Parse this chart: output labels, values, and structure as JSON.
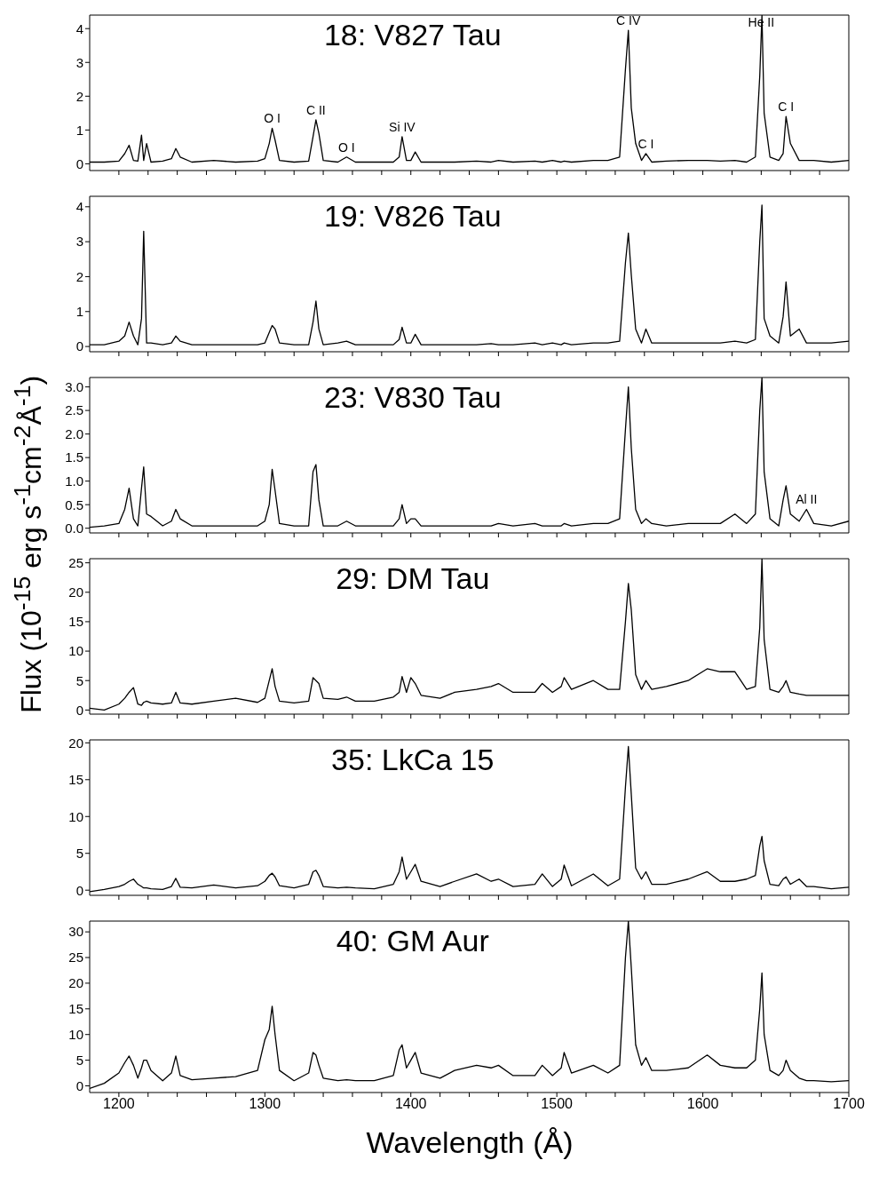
{
  "chart_data": [
    {
      "type": "line",
      "title": "18: V827 Tau",
      "ylabel": "Flux (10$^{-15}$ erg s$^{-1}$cm$^{-2}$Å$^{-1}$)",
      "color": "#000000",
      "tick_labels": "y",
      "xlim": [
        1180,
        1700
      ],
      "xticks": [
        {
          "value": 1200,
          "label": null
        },
        {
          "value": 1220,
          "label": null
        },
        {
          "value": 1240,
          "label": null
        },
        {
          "value": 1260,
          "label": null
        },
        {
          "value": 1280,
          "label": null
        },
        {
          "value": 1300,
          "label": null
        },
        {
          "value": 1320,
          "label": null
        },
        {
          "value": 1340,
          "label": null
        },
        {
          "value": 1360,
          "label": null
        },
        {
          "value": 1380,
          "label": null
        },
        {
          "value": 1400,
          "label": null
        },
        {
          "value": 1420,
          "label": null
        },
        {
          "value": 1440,
          "label": null
        },
        {
          "value": 1460,
          "label": null
        },
        {
          "value": 1480,
          "label": null
        },
        {
          "value": 1500,
          "label": null
        },
        {
          "value": 1520,
          "label": null
        },
        {
          "value": 1540,
          "label": null
        },
        {
          "value": 1560,
          "label": null
        },
        {
          "value": 1580,
          "label": null
        },
        {
          "value": 1600,
          "label": null
        },
        {
          "value": 1620,
          "label": null
        },
        {
          "value": 1640,
          "label": null
        },
        {
          "value": 1660,
          "label": null
        },
        {
          "value": 1680,
          "label": null
        }
      ],
      "ylim": [
        -0.2,
        4.4
      ],
      "yticks": [
        0,
        1,
        2,
        3,
        4
      ],
      "x": [
        1180,
        1190,
        1200,
        1204,
        1207,
        1210,
        1213,
        1215.5,
        1217,
        1219,
        1222,
        1230,
        1236,
        1239,
        1242,
        1250,
        1265,
        1280,
        1295,
        1300,
        1303,
        1305,
        1307,
        1310,
        1320,
        1330,
        1333,
        1335,
        1337,
        1340,
        1350,
        1356,
        1362,
        1375,
        1388,
        1392,
        1394,
        1397,
        1400,
        1403,
        1407,
        1420,
        1430,
        1445,
        1455,
        1460,
        1470,
        1485,
        1490,
        1497,
        1503,
        1505,
        1510,
        1525,
        1535,
        1543,
        1547,
        1549,
        1551,
        1554,
        1558,
        1561,
        1565,
        1575,
        1590,
        1603,
        1612,
        1622,
        1630,
        1636,
        1639,
        1640.5,
        1642,
        1646,
        1652,
        1655,
        1657,
        1660,
        1666,
        1671,
        1676,
        1688,
        1700
      ],
      "values": [
        0.05,
        0.05,
        0.08,
        0.3,
        0.55,
        0.1,
        0.08,
        0.85,
        0.1,
        0.6,
        0.05,
        0.08,
        0.15,
        0.45,
        0.2,
        0.05,
        0.1,
        0.05,
        0.08,
        0.15,
        0.6,
        1.05,
        0.7,
        0.1,
        0.05,
        0.08,
        0.8,
        1.3,
        0.9,
        0.1,
        0.05,
        0.2,
        0.05,
        0.05,
        0.05,
        0.2,
        0.8,
        0.1,
        0.1,
        0.35,
        0.05,
        0.05,
        0.05,
        0.08,
        0.05,
        0.1,
        0.05,
        0.08,
        0.05,
        0.1,
        0.05,
        0.08,
        0.05,
        0.1,
        0.1,
        0.2,
        2.8,
        3.95,
        1.65,
        0.6,
        0.1,
        0.3,
        0.05,
        0.08,
        0.1,
        0.1,
        0.08,
        0.1,
        0.05,
        0.2,
        2.6,
        4.4,
        1.5,
        0.2,
        0.1,
        0.3,
        1.4,
        0.6,
        0.1,
        0.1,
        0.1,
        0.05,
        0.1
      ],
      "annotations": [
        {
          "text": "O I",
          "x": 1305,
          "y": 1.05
        },
        {
          "text": "C II",
          "x": 1335,
          "y": 1.3
        },
        {
          "text": "O I",
          "x": 1356,
          "y": 0.2
        },
        {
          "text": "Si IV",
          "x": 1394,
          "y": 0.8
        },
        {
          "text": "C IV",
          "x": 1549,
          "y": 3.95
        },
        {
          "text": "C I",
          "x": 1561,
          "y": 0.3
        },
        {
          "text": "He II",
          "x": 1640,
          "y": 3.9
        },
        {
          "text": "C I",
          "x": 1657,
          "y": 1.4
        }
      ]
    },
    {
      "type": "line",
      "title": "19: V826 Tau",
      "color": "#000000",
      "tick_labels": "y",
      "xlim": [
        1180,
        1700
      ],
      "xticks": [
        {
          "value": 1200,
          "label": null
        },
        {
          "value": 1220,
          "label": null
        },
        {
          "value": 1240,
          "label": null
        },
        {
          "value": 1260,
          "label": null
        },
        {
          "value": 1280,
          "label": null
        },
        {
          "value": 1300,
          "label": null
        },
        {
          "value": 1320,
          "label": null
        },
        {
          "value": 1340,
          "label": null
        },
        {
          "value": 1360,
          "label": null
        },
        {
          "value": 1380,
          "label": null
        },
        {
          "value": 1400,
          "label": null
        },
        {
          "value": 1420,
          "label": null
        },
        {
          "value": 1440,
          "label": null
        },
        {
          "value": 1460,
          "label": null
        },
        {
          "value": 1480,
          "label": null
        },
        {
          "value": 1500,
          "label": null
        },
        {
          "value": 1520,
          "label": null
        },
        {
          "value": 1540,
          "label": null
        },
        {
          "value": 1560,
          "label": null
        },
        {
          "value": 1580,
          "label": null
        },
        {
          "value": 1600,
          "label": null
        },
        {
          "value": 1620,
          "label": null
        },
        {
          "value": 1640,
          "label": null
        },
        {
          "value": 1660,
          "label": null
        },
        {
          "value": 1680,
          "label": null
        }
      ],
      "ylim": [
        -0.15,
        4.3
      ],
      "yticks": [
        0,
        1,
        2,
        3,
        4
      ],
      "x": [
        1180,
        1190,
        1200,
        1204,
        1207,
        1210,
        1213,
        1215.5,
        1217,
        1219,
        1222,
        1230,
        1236,
        1239,
        1242,
        1250,
        1265,
        1280,
        1295,
        1300,
        1303,
        1305,
        1307,
        1310,
        1320,
        1330,
        1333,
        1335,
        1337,
        1340,
        1350,
        1356,
        1362,
        1375,
        1388,
        1392,
        1394,
        1397,
        1400,
        1403,
        1407,
        1420,
        1430,
        1445,
        1455,
        1460,
        1470,
        1485,
        1490,
        1497,
        1503,
        1505,
        1510,
        1525,
        1535,
        1543,
        1547,
        1549,
        1551,
        1554,
        1558,
        1561,
        1565,
        1575,
        1590,
        1603,
        1612,
        1622,
        1630,
        1636,
        1639,
        1640.5,
        1642,
        1646,
        1652,
        1655,
        1657,
        1660,
        1666,
        1671,
        1676,
        1688,
        1700
      ],
      "values": [
        0.05,
        0.05,
        0.15,
        0.3,
        0.7,
        0.3,
        0.05,
        0.8,
        3.3,
        0.1,
        0.1,
        0.05,
        0.1,
        0.3,
        0.15,
        0.05,
        0.05,
        0.05,
        0.05,
        0.1,
        0.4,
        0.6,
        0.5,
        0.1,
        0.05,
        0.05,
        0.7,
        1.3,
        0.5,
        0.05,
        0.1,
        0.15,
        0.05,
        0.05,
        0.05,
        0.2,
        0.55,
        0.1,
        0.1,
        0.35,
        0.05,
        0.05,
        0.05,
        0.05,
        0.08,
        0.05,
        0.05,
        0.1,
        0.05,
        0.1,
        0.05,
        0.1,
        0.05,
        0.1,
        0.1,
        0.15,
        2.4,
        3.25,
        2.05,
        0.5,
        0.1,
        0.5,
        0.1,
        0.1,
        0.1,
        0.1,
        0.1,
        0.15,
        0.1,
        0.2,
        3.0,
        4.05,
        0.8,
        0.3,
        0.1,
        0.85,
        1.85,
        0.3,
        0.5,
        0.1,
        0.1,
        0.1,
        0.15
      ]
    },
    {
      "type": "line",
      "title": "23: V830 Tau",
      "color": "#000000",
      "tick_labels": "y",
      "xlim": [
        1180,
        1700
      ],
      "xticks": [
        {
          "value": 1200,
          "label": null
        },
        {
          "value": 1220,
          "label": null
        },
        {
          "value": 1240,
          "label": null
        },
        {
          "value": 1260,
          "label": null
        },
        {
          "value": 1280,
          "label": null
        },
        {
          "value": 1300,
          "label": null
        },
        {
          "value": 1320,
          "label": null
        },
        {
          "value": 1340,
          "label": null
        },
        {
          "value": 1360,
          "label": null
        },
        {
          "value": 1380,
          "label": null
        },
        {
          "value": 1400,
          "label": null
        },
        {
          "value": 1420,
          "label": null
        },
        {
          "value": 1440,
          "label": null
        },
        {
          "value": 1460,
          "label": null
        },
        {
          "value": 1480,
          "label": null
        },
        {
          "value": 1500,
          "label": null
        },
        {
          "value": 1520,
          "label": null
        },
        {
          "value": 1540,
          "label": null
        },
        {
          "value": 1560,
          "label": null
        },
        {
          "value": 1580,
          "label": null
        },
        {
          "value": 1600,
          "label": null
        },
        {
          "value": 1620,
          "label": null
        },
        {
          "value": 1640,
          "label": null
        },
        {
          "value": 1660,
          "label": null
        },
        {
          "value": 1680,
          "label": null
        }
      ],
      "ylim": [
        -0.1,
        3.2
      ],
      "yticks": [
        {
          "value": 0,
          "label": "0.0"
        },
        {
          "value": 0.5,
          "label": "0.5"
        },
        {
          "value": 1,
          "label": "1.0"
        },
        {
          "value": 1.5,
          "label": "1.5"
        },
        {
          "value": 2,
          "label": "2.0"
        },
        {
          "value": 2.5,
          "label": "2.5"
        },
        {
          "value": 3,
          "label": "3.0"
        }
      ],
      "x": [
        1180,
        1190,
        1200,
        1204,
        1207,
        1210,
        1213,
        1215.5,
        1217,
        1219,
        1222,
        1230,
        1236,
        1239,
        1242,
        1250,
        1265,
        1280,
        1295,
        1300,
        1303,
        1305,
        1307,
        1310,
        1320,
        1330,
        1333,
        1335,
        1337,
        1340,
        1350,
        1356,
        1362,
        1375,
        1388,
        1392,
        1394,
        1397,
        1400,
        1403,
        1407,
        1420,
        1430,
        1445,
        1455,
        1460,
        1470,
        1485,
        1490,
        1497,
        1503,
        1505,
        1510,
        1525,
        1535,
        1543,
        1547,
        1549,
        1551,
        1554,
        1558,
        1561,
        1565,
        1575,
        1590,
        1603,
        1612,
        1622,
        1630,
        1636,
        1639,
        1640.5,
        1642,
        1646,
        1652,
        1655,
        1657,
        1660,
        1666,
        1671,
        1676,
        1688,
        1700
      ],
      "values": [
        0.02,
        0.05,
        0.1,
        0.4,
        0.85,
        0.2,
        0.05,
        0.85,
        1.3,
        0.3,
        0.25,
        0.05,
        0.15,
        0.4,
        0.2,
        0.05,
        0.05,
        0.05,
        0.05,
        0.15,
        0.5,
        1.25,
        0.8,
        0.1,
        0.05,
        0.05,
        1.2,
        1.35,
        0.6,
        0.05,
        0.05,
        0.15,
        0.05,
        0.05,
        0.05,
        0.2,
        0.5,
        0.1,
        0.2,
        0.2,
        0.05,
        0.05,
        0.05,
        0.05,
        0.05,
        0.1,
        0.05,
        0.1,
        0.05,
        0.05,
        0.05,
        0.1,
        0.05,
        0.1,
        0.1,
        0.2,
        2.1,
        3.0,
        1.7,
        0.4,
        0.1,
        0.2,
        0.1,
        0.05,
        0.1,
        0.1,
        0.1,
        0.3,
        0.1,
        0.3,
        2.5,
        3.2,
        1.2,
        0.2,
        0.05,
        0.6,
        0.9,
        0.3,
        0.15,
        0.4,
        0.1,
        0.05,
        0.15
      ],
      "annotations": [
        {
          "text": "Al II",
          "x": 1671,
          "y": 0.4
        }
      ]
    },
    {
      "type": "line",
      "title": "29: DM Tau",
      "color": "#000000",
      "tick_labels": "y",
      "xlim": [
        1180,
        1700
      ],
      "xticks": [
        {
          "value": 1200,
          "label": null
        },
        {
          "value": 1220,
          "label": null
        },
        {
          "value": 1240,
          "label": null
        },
        {
          "value": 1260,
          "label": null
        },
        {
          "value": 1280,
          "label": null
        },
        {
          "value": 1300,
          "label": null
        },
        {
          "value": 1320,
          "label": null
        },
        {
          "value": 1340,
          "label": null
        },
        {
          "value": 1360,
          "label": null
        },
        {
          "value": 1380,
          "label": null
        },
        {
          "value": 1400,
          "label": null
        },
        {
          "value": 1420,
          "label": null
        },
        {
          "value": 1440,
          "label": null
        },
        {
          "value": 1460,
          "label": null
        },
        {
          "value": 1480,
          "label": null
        },
        {
          "value": 1500,
          "label": null
        },
        {
          "value": 1520,
          "label": null
        },
        {
          "value": 1540,
          "label": null
        },
        {
          "value": 1560,
          "label": null
        },
        {
          "value": 1580,
          "label": null
        },
        {
          "value": 1600,
          "label": null
        },
        {
          "value": 1620,
          "label": null
        },
        {
          "value": 1640,
          "label": null
        },
        {
          "value": 1660,
          "label": null
        },
        {
          "value": 1680,
          "label": null
        }
      ],
      "ylim": [
        -0.7,
        25.7
      ],
      "yticks": [
        0,
        5,
        10,
        15,
        20,
        25
      ],
      "x": [
        1180,
        1190,
        1200,
        1204,
        1207,
        1210,
        1213,
        1215.5,
        1217,
        1219,
        1222,
        1230,
        1236,
        1239,
        1242,
        1250,
        1265,
        1280,
        1295,
        1300,
        1303,
        1305,
        1307,
        1310,
        1320,
        1330,
        1333,
        1335,
        1337,
        1340,
        1350,
        1356,
        1362,
        1375,
        1388,
        1392,
        1394,
        1397,
        1400,
        1403,
        1407,
        1420,
        1430,
        1445,
        1455,
        1460,
        1470,
        1485,
        1490,
        1497,
        1503,
        1505,
        1510,
        1525,
        1535,
        1543,
        1547,
        1549,
        1551,
        1554,
        1558,
        1561,
        1565,
        1575,
        1590,
        1603,
        1612,
        1622,
        1630,
        1636,
        1639,
        1640.5,
        1642,
        1646,
        1652,
        1655,
        1657,
        1660,
        1666,
        1671,
        1676,
        1688,
        1700
      ],
      "values": [
        0.3,
        0,
        1,
        2,
        3,
        3.8,
        1,
        0.8,
        1.3,
        1.5,
        1.2,
        1,
        1.2,
        3,
        1.2,
        1,
        1.5,
        2,
        1.3,
        2,
        5,
        7,
        4,
        1.5,
        1.2,
        1.5,
        5.5,
        5,
        4.5,
        2,
        1.8,
        2.2,
        1.5,
        1.5,
        2.2,
        3,
        5.7,
        3,
        5.5,
        4.5,
        2.5,
        2,
        3,
        3.5,
        4,
        4.5,
        3,
        3,
        4.5,
        3,
        4,
        5.5,
        3.5,
        5,
        3.5,
        3.5,
        15,
        21.5,
        17,
        6,
        3.5,
        5,
        3.5,
        4,
        5,
        7,
        6.5,
        6.5,
        3.5,
        4,
        14,
        25.7,
        12,
        3.5,
        3,
        4,
        5,
        3,
        2.7,
        2.5,
        2.5,
        2.5,
        2.5
      ]
    },
    {
      "type": "line",
      "title": "35: LkCa 15",
      "color": "#000000",
      "tick_labels": "y",
      "xlim": [
        1180,
        1700
      ],
      "xticks": [
        {
          "value": 1200,
          "label": null
        },
        {
          "value": 1220,
          "label": null
        },
        {
          "value": 1240,
          "label": null
        },
        {
          "value": 1260,
          "label": null
        },
        {
          "value": 1280,
          "label": null
        },
        {
          "value": 1300,
          "label": null
        },
        {
          "value": 1320,
          "label": null
        },
        {
          "value": 1340,
          "label": null
        },
        {
          "value": 1360,
          "label": null
        },
        {
          "value": 1380,
          "label": null
        },
        {
          "value": 1400,
          "label": null
        },
        {
          "value": 1420,
          "label": null
        },
        {
          "value": 1440,
          "label": null
        },
        {
          "value": 1460,
          "label": null
        },
        {
          "value": 1480,
          "label": null
        },
        {
          "value": 1500,
          "label": null
        },
        {
          "value": 1520,
          "label": null
        },
        {
          "value": 1540,
          "label": null
        },
        {
          "value": 1560,
          "label": null
        },
        {
          "value": 1580,
          "label": null
        },
        {
          "value": 1600,
          "label": null
        },
        {
          "value": 1620,
          "label": null
        },
        {
          "value": 1640,
          "label": null
        },
        {
          "value": 1660,
          "label": null
        },
        {
          "value": 1680,
          "label": null
        }
      ],
      "ylim": [
        -0.7,
        20.4
      ],
      "yticks": [
        0,
        5,
        10,
        15,
        20
      ],
      "x": [
        1180,
        1190,
        1200,
        1204,
        1207,
        1210,
        1213,
        1215.5,
        1217,
        1219,
        1222,
        1230,
        1236,
        1239,
        1242,
        1250,
        1265,
        1280,
        1295,
        1300,
        1303,
        1305,
        1307,
        1310,
        1320,
        1330,
        1333,
        1335,
        1337,
        1340,
        1350,
        1356,
        1362,
        1375,
        1388,
        1392,
        1394,
        1397,
        1400,
        1403,
        1407,
        1420,
        1430,
        1445,
        1455,
        1460,
        1470,
        1485,
        1490,
        1497,
        1503,
        1505,
        1510,
        1525,
        1535,
        1543,
        1547,
        1549,
        1551,
        1554,
        1558,
        1561,
        1565,
        1575,
        1590,
        1603,
        1612,
        1622,
        1630,
        1636,
        1639,
        1640.5,
        1642,
        1646,
        1652,
        1655,
        1657,
        1660,
        1666,
        1671,
        1676,
        1688,
        1700
      ],
      "values": [
        -0.2,
        0.1,
        0.5,
        0.8,
        1.2,
        1.5,
        0.8,
        0.5,
        0.3,
        0.3,
        0.2,
        0.1,
        0.5,
        1.6,
        0.4,
        0.3,
        0.7,
        0.3,
        0.6,
        1.2,
        2,
        2.3,
        1.8,
        0.6,
        0.3,
        0.8,
        2.5,
        2.7,
        2,
        0.5,
        0.3,
        0.4,
        0.3,
        0.2,
        0.8,
        2.5,
        4.5,
        1.5,
        2.5,
        3.5,
        1.2,
        0.5,
        1.2,
        2.2,
        1.2,
        1.5,
        0.5,
        0.8,
        2.2,
        0.5,
        1.5,
        3.4,
        0.6,
        2.2,
        0.6,
        1.5,
        14,
        19.5,
        13,
        3,
        1.5,
        2.5,
        0.8,
        0.8,
        1.5,
        2.5,
        1.2,
        1.2,
        1.5,
        2,
        6,
        7.3,
        4,
        0.8,
        0.6,
        1.5,
        1.8,
        0.8,
        1.5,
        0.5,
        0.5,
        0.2,
        0.4
      ]
    },
    {
      "type": "line",
      "title": "40: GM Aur",
      "xlabel": "Wavelength (Å)",
      "color": "#000000",
      "xlim": [
        1180,
        1700
      ],
      "xticks": [
        1200,
        {
          "value": 1220,
          "label": null
        },
        {
          "value": 1240,
          "label": null
        },
        {
          "value": 1260,
          "label": null
        },
        {
          "value": 1280,
          "label": null
        },
        1300,
        {
          "value": 1320,
          "label": null
        },
        {
          "value": 1340,
          "label": null
        },
        {
          "value": 1360,
          "label": null
        },
        {
          "value": 1380,
          "label": null
        },
        1400,
        {
          "value": 1420,
          "label": null
        },
        {
          "value": 1440,
          "label": null
        },
        {
          "value": 1460,
          "label": null
        },
        {
          "value": 1480,
          "label": null
        },
        1500,
        {
          "value": 1520,
          "label": null
        },
        {
          "value": 1540,
          "label": null
        },
        {
          "value": 1560,
          "label": null
        },
        {
          "value": 1580,
          "label": null
        },
        1600,
        {
          "value": 1620,
          "label": null
        },
        {
          "value": 1640,
          "label": null
        },
        {
          "value": 1660,
          "label": null
        },
        {
          "value": 1680,
          "label": null
        },
        1700
      ],
      "ylim": [
        -1.3,
        32.1
      ],
      "yticks": [
        0,
        5,
        10,
        15,
        20,
        25,
        30
      ],
      "x": [
        1180,
        1190,
        1200,
        1204,
        1207,
        1210,
        1213,
        1215.5,
        1217,
        1219,
        1222,
        1230,
        1236,
        1239,
        1242,
        1250,
        1265,
        1280,
        1295,
        1300,
        1303,
        1305,
        1307,
        1310,
        1320,
        1330,
        1333,
        1335,
        1337,
        1340,
        1350,
        1356,
        1362,
        1375,
        1388,
        1392,
        1394,
        1397,
        1400,
        1403,
        1407,
        1420,
        1430,
        1445,
        1455,
        1460,
        1470,
        1485,
        1490,
        1497,
        1503,
        1505,
        1510,
        1525,
        1535,
        1543,
        1547,
        1549,
        1551,
        1554,
        1558,
        1561,
        1565,
        1575,
        1590,
        1603,
        1612,
        1622,
        1630,
        1636,
        1639,
        1640.5,
        1642,
        1646,
        1652,
        1655,
        1657,
        1660,
        1666,
        1671,
        1676,
        1688,
        1700
      ],
      "values": [
        -0.5,
        0.5,
        2.5,
        4.5,
        5.8,
        4,
        1.5,
        3.5,
        5,
        5,
        3,
        1,
        2.5,
        5.8,
        2,
        1.2,
        1.5,
        1.8,
        3,
        9,
        11,
        15.5,
        10,
        3,
        1,
        2.5,
        6.5,
        6,
        4,
        1.5,
        1,
        1.2,
        1,
        1,
        2,
        7,
        8,
        3.5,
        5,
        6.5,
        2.5,
        1.5,
        3,
        4,
        3.5,
        4,
        2,
        2,
        4,
        2,
        3.5,
        6.5,
        2.5,
        4,
        2.5,
        4,
        25,
        32.1,
        23,
        8,
        4,
        5.5,
        3,
        3,
        3.5,
        6,
        4,
        3.5,
        3.5,
        5,
        15,
        22,
        10,
        3,
        2,
        3,
        5,
        3,
        1.5,
        1,
        1,
        0.8,
        1
      ]
    }
  ]
}
